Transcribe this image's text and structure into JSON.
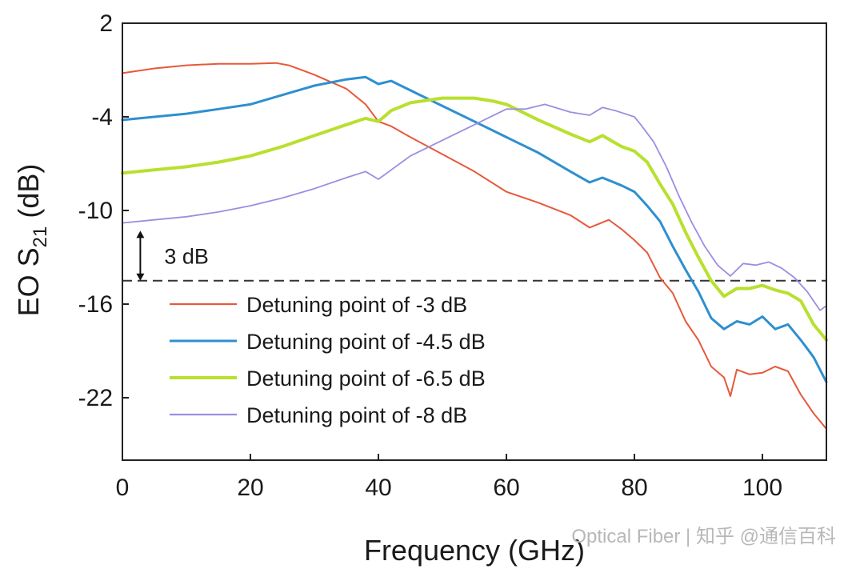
{
  "chart_data": {
    "type": "line",
    "xlabel": "Frequency (GHz)",
    "ylabel": "EO S",
    "ylabel_sub": "21",
    "ylabel_unit": " (dB)",
    "xlim": [
      0,
      110
    ],
    "ylim": [
      -26,
      2
    ],
    "xticks": [
      0,
      20,
      40,
      60,
      80,
      100
    ],
    "yticks": [
      2,
      -4,
      -10,
      -16,
      -22
    ],
    "grid": false,
    "legend_position": "lower-left",
    "reference_line": {
      "y": -14.5,
      "style": "dashed",
      "color": "#333333"
    },
    "annotation": {
      "text": "3 dB",
      "from_y": -11.3,
      "to_y": -14.5,
      "x": 2.8
    },
    "series": [
      {
        "name": "Detuning point of -3 dB",
        "color": "#e8583a",
        "width": 2,
        "points": [
          [
            0,
            -1.2
          ],
          [
            5,
            -0.9
          ],
          [
            10,
            -0.7
          ],
          [
            15,
            -0.6
          ],
          [
            20,
            -0.6
          ],
          [
            24,
            -0.55
          ],
          [
            26,
            -0.7
          ],
          [
            30,
            -1.3
          ],
          [
            35,
            -2.2
          ],
          [
            38,
            -3.2
          ],
          [
            40,
            -4.3
          ],
          [
            42,
            -4.6
          ],
          [
            45,
            -5.3
          ],
          [
            50,
            -6.4
          ],
          [
            55,
            -7.5
          ],
          [
            60,
            -8.8
          ],
          [
            65,
            -9.5
          ],
          [
            70,
            -10.3
          ],
          [
            73,
            -11.1
          ],
          [
            76,
            -10.6
          ],
          [
            78,
            -11.2
          ],
          [
            80,
            -11.9
          ],
          [
            82,
            -12.7
          ],
          [
            84,
            -14.3
          ],
          [
            86,
            -15.3
          ],
          [
            88,
            -17.1
          ],
          [
            90,
            -18.3
          ],
          [
            92,
            -20.0
          ],
          [
            94,
            -20.7
          ],
          [
            95,
            -21.9
          ],
          [
            96,
            -20.2
          ],
          [
            98,
            -20.5
          ],
          [
            100,
            -20.4
          ],
          [
            102,
            -20.0
          ],
          [
            104,
            -20.3
          ],
          [
            106,
            -21.8
          ],
          [
            108,
            -23.0
          ],
          [
            110,
            -24.0
          ]
        ]
      },
      {
        "name": "Detuning point of -4.5 dB",
        "color": "#2e8fd0",
        "width": 3,
        "points": [
          [
            0,
            -4.2
          ],
          [
            5,
            -4.0
          ],
          [
            10,
            -3.8
          ],
          [
            15,
            -3.5
          ],
          [
            20,
            -3.2
          ],
          [
            25,
            -2.6
          ],
          [
            30,
            -2.0
          ],
          [
            35,
            -1.6
          ],
          [
            38,
            -1.45
          ],
          [
            40,
            -1.9
          ],
          [
            42,
            -1.7
          ],
          [
            45,
            -2.3
          ],
          [
            50,
            -3.3
          ],
          [
            55,
            -4.3
          ],
          [
            60,
            -5.3
          ],
          [
            65,
            -6.3
          ],
          [
            70,
            -7.5
          ],
          [
            73,
            -8.2
          ],
          [
            75,
            -7.9
          ],
          [
            78,
            -8.4
          ],
          [
            80,
            -8.8
          ],
          [
            82,
            -9.7
          ],
          [
            84,
            -10.7
          ],
          [
            86,
            -12.3
          ],
          [
            88,
            -13.8
          ],
          [
            90,
            -15.2
          ],
          [
            92,
            -16.9
          ],
          [
            94,
            -17.6
          ],
          [
            96,
            -17.1
          ],
          [
            98,
            -17.3
          ],
          [
            100,
            -16.8
          ],
          [
            102,
            -17.6
          ],
          [
            104,
            -17.3
          ],
          [
            106,
            -18.3
          ],
          [
            108,
            -19.4
          ],
          [
            110,
            -21.0
          ]
        ]
      },
      {
        "name": "Detuning point of -6.5 dB",
        "color": "#b8e02e",
        "width": 4,
        "points": [
          [
            0,
            -7.6
          ],
          [
            5,
            -7.4
          ],
          [
            10,
            -7.2
          ],
          [
            15,
            -6.9
          ],
          [
            20,
            -6.5
          ],
          [
            25,
            -5.9
          ],
          [
            30,
            -5.2
          ],
          [
            35,
            -4.5
          ],
          [
            38,
            -4.1
          ],
          [
            40,
            -4.3
          ],
          [
            42,
            -3.6
          ],
          [
            45,
            -3.1
          ],
          [
            50,
            -2.8
          ],
          [
            55,
            -2.8
          ],
          [
            58,
            -3.0
          ],
          [
            60,
            -3.2
          ],
          [
            65,
            -4.2
          ],
          [
            70,
            -5.1
          ],
          [
            73,
            -5.6
          ],
          [
            75,
            -5.2
          ],
          [
            78,
            -5.9
          ],
          [
            80,
            -6.2
          ],
          [
            82,
            -6.9
          ],
          [
            84,
            -8.3
          ],
          [
            86,
            -9.6
          ],
          [
            88,
            -11.4
          ],
          [
            90,
            -13.0
          ],
          [
            92,
            -14.5
          ],
          [
            94,
            -15.5
          ],
          [
            96,
            -15.0
          ],
          [
            98,
            -15.0
          ],
          [
            100,
            -14.8
          ],
          [
            102,
            -15.1
          ],
          [
            104,
            -15.3
          ],
          [
            106,
            -15.8
          ],
          [
            108,
            -17.3
          ],
          [
            110,
            -18.3
          ]
        ]
      },
      {
        "name": "Detuning point of -8 dB",
        "color": "#9c8ee0",
        "width": 1.8,
        "points": [
          [
            0,
            -10.8
          ],
          [
            5,
            -10.6
          ],
          [
            10,
            -10.4
          ],
          [
            15,
            -10.1
          ],
          [
            20,
            -9.7
          ],
          [
            25,
            -9.2
          ],
          [
            30,
            -8.6
          ],
          [
            35,
            -7.9
          ],
          [
            38,
            -7.5
          ],
          [
            40,
            -8.0
          ],
          [
            42,
            -7.4
          ],
          [
            45,
            -6.5
          ],
          [
            50,
            -5.5
          ],
          [
            55,
            -4.5
          ],
          [
            60,
            -3.5
          ],
          [
            63,
            -3.5
          ],
          [
            66,
            -3.2
          ],
          [
            70,
            -3.7
          ],
          [
            73,
            -3.9
          ],
          [
            75,
            -3.4
          ],
          [
            77,
            -3.6
          ],
          [
            80,
            -4.0
          ],
          [
            81,
            -4.5
          ],
          [
            83,
            -5.6
          ],
          [
            85,
            -7.2
          ],
          [
            87,
            -9.1
          ],
          [
            89,
            -10.8
          ],
          [
            91,
            -12.3
          ],
          [
            93,
            -13.5
          ],
          [
            95,
            -14.2
          ],
          [
            97,
            -13.4
          ],
          [
            99,
            -13.5
          ],
          [
            101,
            -13.3
          ],
          [
            103,
            -13.7
          ],
          [
            105,
            -14.3
          ],
          [
            107,
            -15.2
          ],
          [
            109,
            -16.4
          ],
          [
            110,
            -16.1
          ]
        ]
      }
    ]
  },
  "watermark": "Optical Fiber | 知乎 @通信百科"
}
